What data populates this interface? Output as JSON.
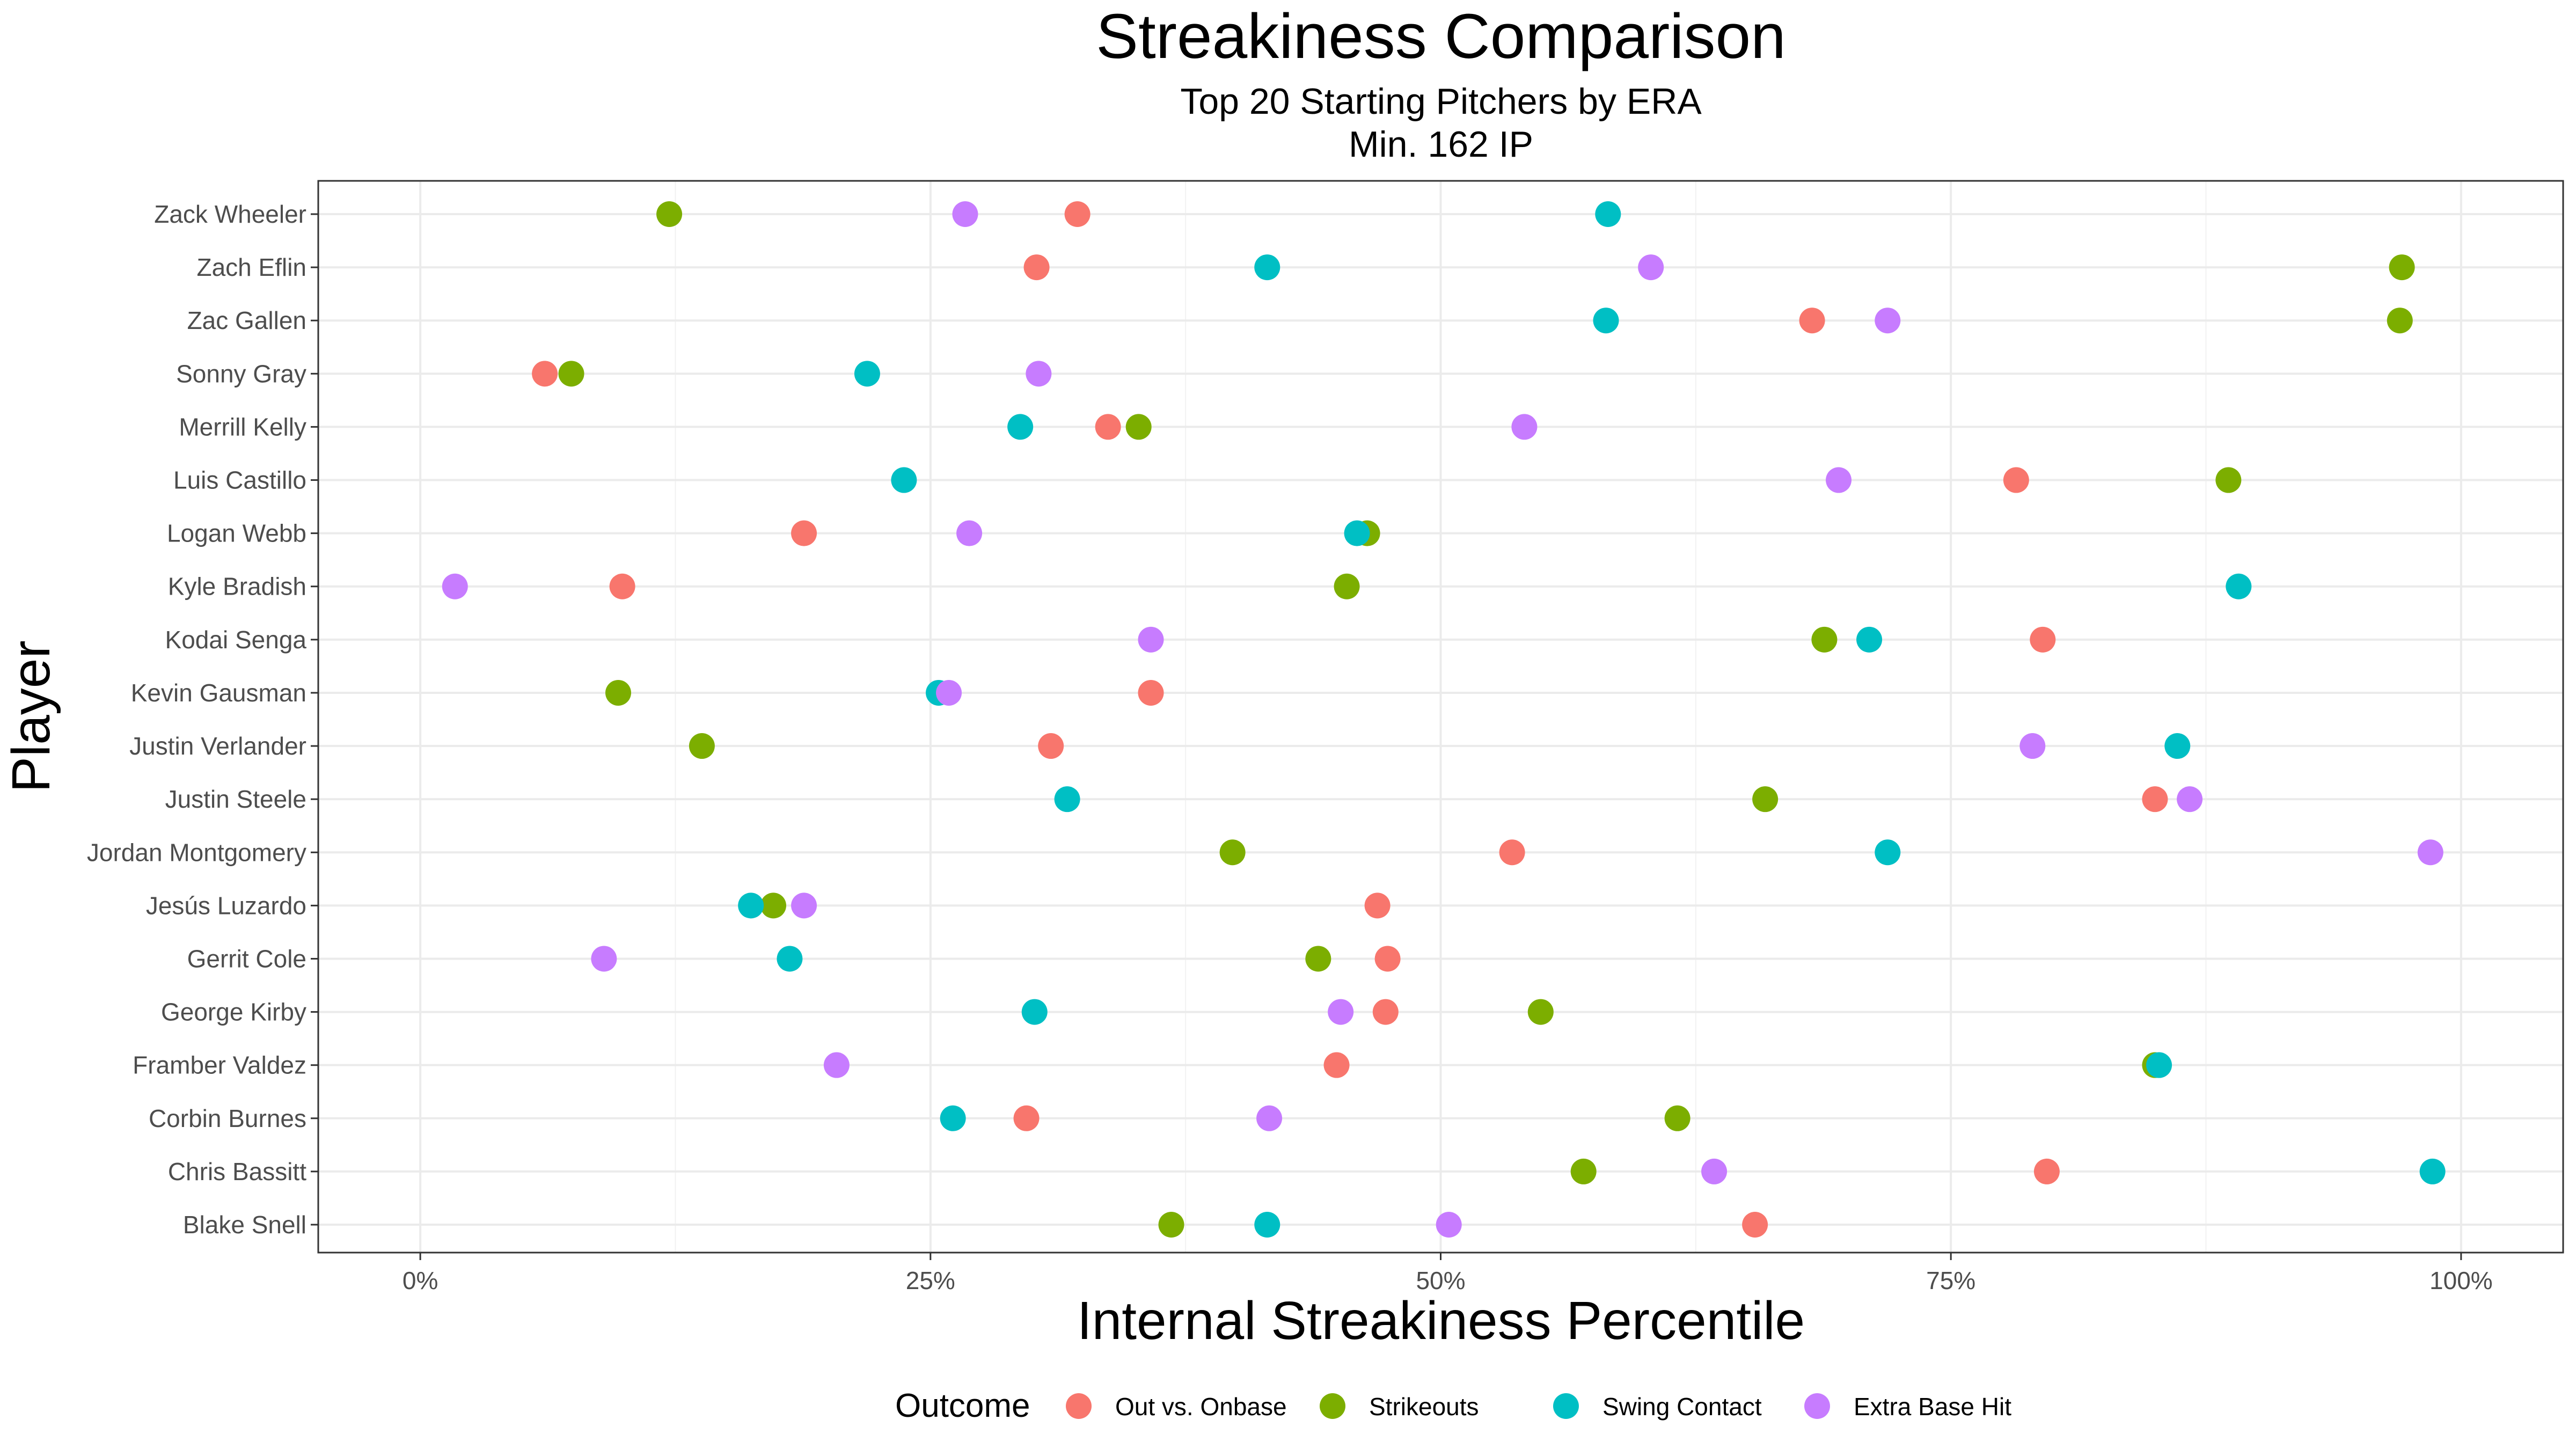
{
  "chart_data": {
    "type": "scatter",
    "title": "Streakiness Comparison",
    "subtitle_lines": [
      "Top 20 Starting Pitchers by ERA",
      "Min. 162 IP"
    ],
    "xlabel": "Internal Streakiness Percentile",
    "ylabel": "Player",
    "xlim": [
      -0.05,
      1.05
    ],
    "x_ticks": [
      0,
      0.25,
      0.5,
      0.75,
      1.0
    ],
    "x_tick_labels": [
      "0%",
      "25%",
      "50%",
      "75%",
      "100%"
    ],
    "grid": true,
    "legend_position": "bottom",
    "legend_title": "Outcome",
    "series": [
      {
        "name": "Out vs. Onbase",
        "color": "#F8766D"
      },
      {
        "name": "Strikeouts",
        "color": "#7CAE00"
      },
      {
        "name": "Swing Contact",
        "color": "#00BFC4"
      },
      {
        "name": "Extra Base Hit",
        "color": "#C77CFF"
      }
    ],
    "players": [
      {
        "name": "Zack Wheeler",
        "values": [
          0.322,
          0.122,
          0.582,
          0.267
        ]
      },
      {
        "name": "Zach Eflin",
        "values": [
          0.302,
          0.971,
          0.415,
          0.603
        ]
      },
      {
        "name": "Zac Gallen",
        "values": [
          0.682,
          0.97,
          0.581,
          0.719
        ]
      },
      {
        "name": "Sonny Gray",
        "values": [
          0.061,
          0.074,
          0.219,
          0.303
        ]
      },
      {
        "name": "Merrill Kelly",
        "values": [
          0.337,
          0.352,
          0.294,
          0.541
        ]
      },
      {
        "name": "Luis Castillo",
        "values": [
          0.782,
          0.886,
          0.237,
          0.695
        ]
      },
      {
        "name": "Logan Webb",
        "values": [
          0.188,
          0.464,
          0.459,
          0.269
        ]
      },
      {
        "name": "Kyle Bradish",
        "values": [
          0.099,
          0.454,
          0.891,
          0.017
        ]
      },
      {
        "name": "Kodai Senga",
        "values": [
          0.795,
          0.688,
          0.71,
          0.358
        ]
      },
      {
        "name": "Kevin Gausman",
        "values": [
          0.358,
          0.097,
          0.254,
          0.259
        ]
      },
      {
        "name": "Justin Verlander",
        "values": [
          0.309,
          0.138,
          0.861,
          0.79
        ]
      },
      {
        "name": "Justin Steele",
        "values": [
          0.85,
          0.659,
          0.317,
          0.867
        ]
      },
      {
        "name": "Jordan Montgomery",
        "values": [
          0.535,
          0.398,
          0.719,
          0.985
        ]
      },
      {
        "name": "Jesús Luzardo",
        "values": [
          0.469,
          0.173,
          0.162,
          0.188
        ]
      },
      {
        "name": "Gerrit Cole",
        "values": [
          0.474,
          0.44,
          0.181,
          0.09
        ]
      },
      {
        "name": "George Kirby",
        "values": [
          0.473,
          0.549,
          0.301,
          0.451
        ]
      },
      {
        "name": "Framber Valdez",
        "values": [
          0.449,
          0.85,
          0.852,
          0.204
        ]
      },
      {
        "name": "Corbin Burnes",
        "values": [
          0.297,
          0.616,
          0.261,
          0.416
        ]
      },
      {
        "name": "Chris Bassitt",
        "values": [
          0.797,
          0.57,
          0.986,
          0.634
        ]
      },
      {
        "name": "Blake Snell",
        "values": [
          0.654,
          0.368,
          0.415,
          0.504
        ]
      }
    ]
  }
}
